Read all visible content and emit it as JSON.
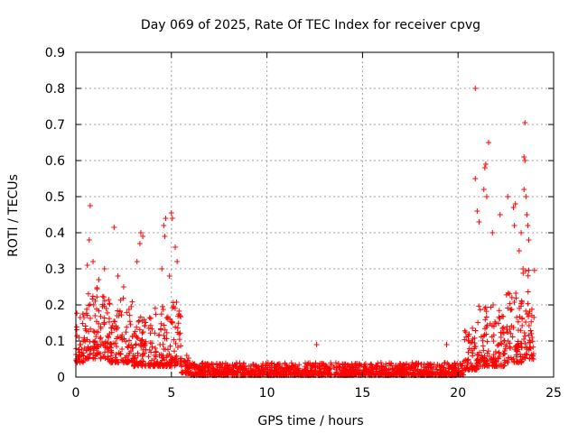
{
  "chart_data": {
    "type": "scatter",
    "title": "Day 069 of 2025, Rate Of TEC Index for receiver cpvg",
    "xlabel": "GPS time / hours",
    "ylabel": "ROTI / TECUs",
    "xlim": [
      0,
      25
    ],
    "ylim": [
      0,
      0.9
    ],
    "x_ticks": [
      "0",
      "5",
      "10",
      "15",
      "20",
      "25"
    ],
    "y_ticks": [
      "0",
      "0.1",
      "0.2",
      "0.3",
      "0.4",
      "0.5",
      "0.6",
      "0.7",
      "0.8",
      "0.9"
    ],
    "grid": true,
    "marker": "+",
    "series": [
      {
        "name": "ROTI",
        "color": "#ff0000",
        "profile": [
          {
            "x0": 0.0,
            "x1": 0.5,
            "base": 0.04,
            "spread": 0.14
          },
          {
            "x0": 0.5,
            "x1": 1.5,
            "base": 0.05,
            "spread": 0.2
          },
          {
            "x0": 1.5,
            "x1": 3.0,
            "base": 0.04,
            "spread": 0.18
          },
          {
            "x0": 3.0,
            "x1": 4.0,
            "base": 0.03,
            "spread": 0.14
          },
          {
            "x0": 4.0,
            "x1": 5.5,
            "base": 0.03,
            "spread": 0.18
          },
          {
            "x0": 5.5,
            "x1": 6.0,
            "base": 0.01,
            "spread": 0.05
          },
          {
            "x0": 6.0,
            "x1": 20.3,
            "base": 0.005,
            "spread": 0.035
          },
          {
            "x0": 20.3,
            "x1": 21.0,
            "base": 0.02,
            "spread": 0.12
          },
          {
            "x0": 21.0,
            "x1": 22.5,
            "base": 0.03,
            "spread": 0.18
          },
          {
            "x0": 22.5,
            "x1": 23.4,
            "base": 0.04,
            "spread": 0.2
          },
          {
            "x0": 23.4,
            "x1": 24.0,
            "base": 0.05,
            "spread": 0.25
          }
        ],
        "outliers": [
          [
            0.75,
            0.475
          ],
          [
            0.7,
            0.38
          ],
          [
            0.6,
            0.31
          ],
          [
            0.9,
            0.32
          ],
          [
            1.2,
            0.27
          ],
          [
            2.0,
            0.415
          ],
          [
            1.5,
            0.3
          ],
          [
            2.2,
            0.28
          ],
          [
            2.5,
            0.25
          ],
          [
            3.4,
            0.4
          ],
          [
            3.35,
            0.37
          ],
          [
            3.5,
            0.39
          ],
          [
            3.2,
            0.32
          ],
          [
            4.6,
            0.42
          ],
          [
            4.7,
            0.44
          ],
          [
            4.65,
            0.39
          ],
          [
            5.0,
            0.455
          ],
          [
            5.05,
            0.44
          ],
          [
            5.2,
            0.36
          ],
          [
            5.3,
            0.32
          ],
          [
            4.9,
            0.28
          ],
          [
            4.5,
            0.3
          ],
          [
            12.6,
            0.09
          ],
          [
            19.4,
            0.09
          ],
          [
            20.9,
            0.8
          ],
          [
            20.9,
            0.55
          ],
          [
            21.0,
            0.46
          ],
          [
            21.1,
            0.43
          ],
          [
            21.4,
            0.58
          ],
          [
            21.45,
            0.59
          ],
          [
            21.35,
            0.52
          ],
          [
            21.6,
            0.65
          ],
          [
            21.5,
            0.5
          ],
          [
            21.8,
            0.4
          ],
          [
            22.2,
            0.45
          ],
          [
            22.6,
            0.5
          ],
          [
            22.9,
            0.47
          ],
          [
            22.95,
            0.42
          ],
          [
            23.0,
            0.48
          ],
          [
            23.5,
            0.705
          ],
          [
            23.45,
            0.61
          ],
          [
            23.5,
            0.6
          ],
          [
            23.45,
            0.52
          ],
          [
            23.55,
            0.5
          ],
          [
            23.6,
            0.45
          ],
          [
            23.65,
            0.42
          ],
          [
            23.7,
            0.38
          ],
          [
            23.3,
            0.4
          ],
          [
            23.2,
            0.35
          ],
          [
            23.4,
            0.3
          ]
        ]
      }
    ]
  }
}
